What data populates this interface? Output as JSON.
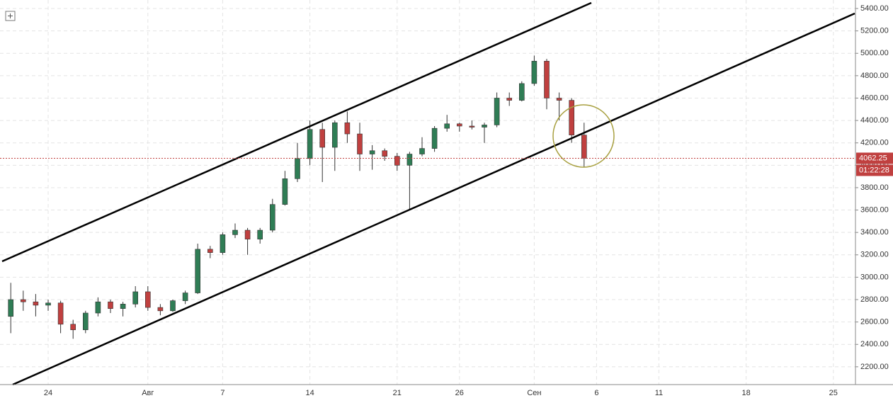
{
  "chart_data": {
    "type": "candlestick",
    "categories": [
      null,
      null,
      null,
      "24",
      null,
      null,
      null,
      null,
      null,
      null,
      null,
      "Авг",
      null,
      null,
      null,
      null,
      null,
      "7",
      null,
      null,
      null,
      null,
      null,
      null,
      "14",
      null,
      null,
      null,
      null,
      null,
      null,
      "21",
      null,
      null,
      null,
      null,
      "26",
      null,
      null,
      null,
      null,
      null,
      "Сен",
      null,
      null,
      null,
      null,
      "6",
      null,
      null,
      null,
      null,
      "11",
      null,
      null,
      null,
      null,
      null,
      null,
      "18",
      null,
      null,
      null,
      null,
      null,
      null,
      "25",
      null
    ],
    "open": [
      2650,
      2800,
      2780,
      2750,
      2770,
      2580,
      2530,
      2680,
      2780,
      2720,
      2760,
      2870,
      2730,
      2700,
      2790,
      2860,
      3250,
      3220,
      3380,
      3420,
      3340,
      3420,
      3650,
      3880,
      4060,
      4320,
      4160,
      4380,
      4280,
      4100,
      4130,
      4080,
      4000,
      4100,
      4150,
      4330,
      4370,
      4350,
      4340,
      4360,
      4600,
      4580,
      4730,
      4930,
      4600,
      4580,
      4270,
      null,
      null,
      null,
      null,
      null,
      null,
      null,
      null,
      null,
      null,
      null,
      null,
      null,
      null,
      null,
      null,
      null,
      null,
      null,
      null,
      null
    ],
    "high": [
      2950,
      2880,
      2850,
      2800,
      2790,
      2620,
      2700,
      2820,
      2800,
      2780,
      2920,
      2920,
      2760,
      2800,
      2880,
      3300,
      3280,
      3400,
      3480,
      3440,
      3440,
      3700,
      3950,
      4200,
      4400,
      4380,
      4400,
      4480,
      4380,
      4180,
      4150,
      4110,
      4120,
      4250,
      4350,
      4450,
      4380,
      4400,
      4380,
      4650,
      4650,
      4750,
      4980,
      4950,
      4650,
      4600,
      4380,
      null,
      null,
      null,
      null,
      null,
      null,
      null,
      null,
      null,
      null,
      null,
      null,
      null,
      null,
      null,
      null,
      null,
      null,
      null,
      null,
      null
    ],
    "low": [
      2500,
      2700,
      2650,
      2700,
      2500,
      2450,
      2500,
      2650,
      2680,
      2650,
      2730,
      2700,
      2660,
      2690,
      2760,
      2850,
      3170,
      3200,
      3350,
      3200,
      3300,
      3400,
      3640,
      3850,
      4000,
      3850,
      3950,
      4200,
      3950,
      3960,
      4040,
      3950,
      3600,
      4080,
      4120,
      4300,
      4300,
      4320,
      4200,
      4340,
      4530,
      4570,
      4710,
      4500,
      4400,
      4200,
      3980,
      null,
      null,
      null,
      null,
      null,
      null,
      null,
      null,
      null,
      null,
      null,
      null,
      null,
      null,
      null,
      null,
      null,
      null,
      null,
      null,
      null
    ],
    "close": [
      2800,
      2780,
      2750,
      2770,
      2580,
      2530,
      2680,
      2780,
      2720,
      2760,
      2870,
      2730,
      2700,
      2790,
      2860,
      3250,
      3220,
      3380,
      3420,
      3340,
      3420,
      3650,
      3880,
      4060,
      4320,
      4160,
      4380,
      4280,
      4100,
      4130,
      4080,
      4000,
      4100,
      4150,
      4330,
      4370,
      4350,
      4340,
      4360,
      4600,
      4580,
      4730,
      4930,
      4600,
      4580,
      4270,
      4062.25,
      null,
      null,
      null,
      null,
      null,
      null,
      null,
      null,
      null,
      null,
      null,
      null,
      null,
      null,
      null,
      null,
      null,
      null,
      null,
      null,
      null
    ],
    "up_color": "#2f7d55",
    "down_color": "#c0403f",
    "ylim": [
      2041,
      5476
    ],
    "yticks": [
      {
        "value": 2200,
        "label": "2200.00"
      },
      {
        "value": 2400,
        "label": "2400.00"
      },
      {
        "value": 2600,
        "label": "2600.00"
      },
      {
        "value": 2800,
        "label": "2800.00"
      },
      {
        "value": 3000,
        "label": "3000.00"
      },
      {
        "value": 3200,
        "label": "3200.00"
      },
      {
        "value": 3400,
        "label": "3400.00"
      },
      {
        "value": 3600,
        "label": "3600.00"
      },
      {
        "value": 3800,
        "label": "3800.00"
      },
      {
        "value": 4000,
        "label": "4000.00"
      },
      {
        "value": 4200,
        "label": "4200.00"
      },
      {
        "value": 4400,
        "label": "4400.00"
      },
      {
        "value": 4600,
        "label": "4600.00"
      },
      {
        "value": 4800,
        "label": "4800.00"
      },
      {
        "value": 5000,
        "label": "5000.00"
      },
      {
        "value": 5200,
        "label": "5200.00"
      },
      {
        "value": 5400,
        "label": "5400.00"
      }
    ],
    "last_price": 4062.25,
    "timer": "01:22:28",
    "grid": true
  }
}
